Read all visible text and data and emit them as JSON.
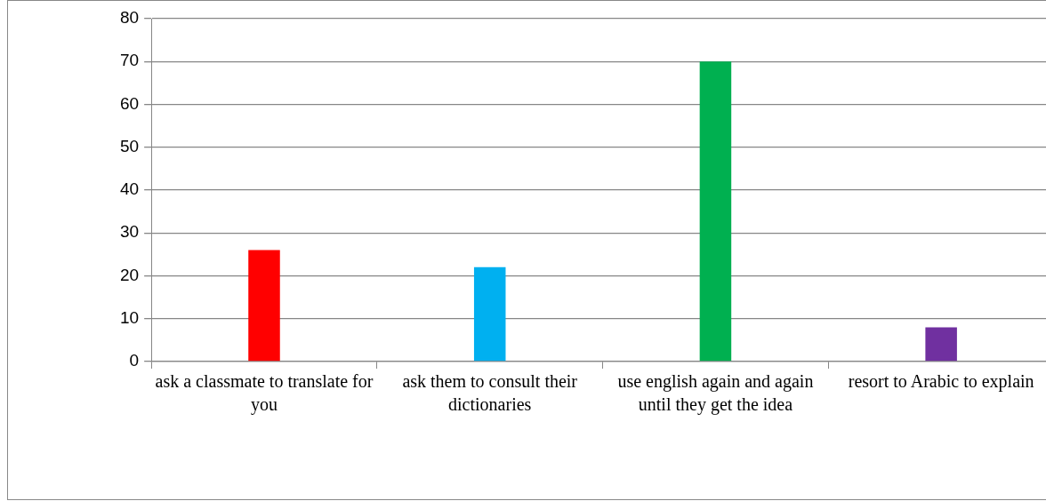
{
  "chart_data": {
    "type": "bar",
    "categories": [
      "ask a classmate to translate for you",
      "ask them to consult their dictionaries",
      "use english again and again until they get the idea",
      "resort to Arabic to explain"
    ],
    "values": [
      26,
      22,
      70,
      8
    ],
    "colors": [
      "#ff0000",
      "#00b0f0",
      "#00b050",
      "#7030a0"
    ],
    "ylim": [
      0,
      80
    ],
    "yticks": [
      0,
      10,
      20,
      30,
      40,
      50,
      60,
      70,
      80
    ],
    "grid": "y",
    "legend": false
  }
}
